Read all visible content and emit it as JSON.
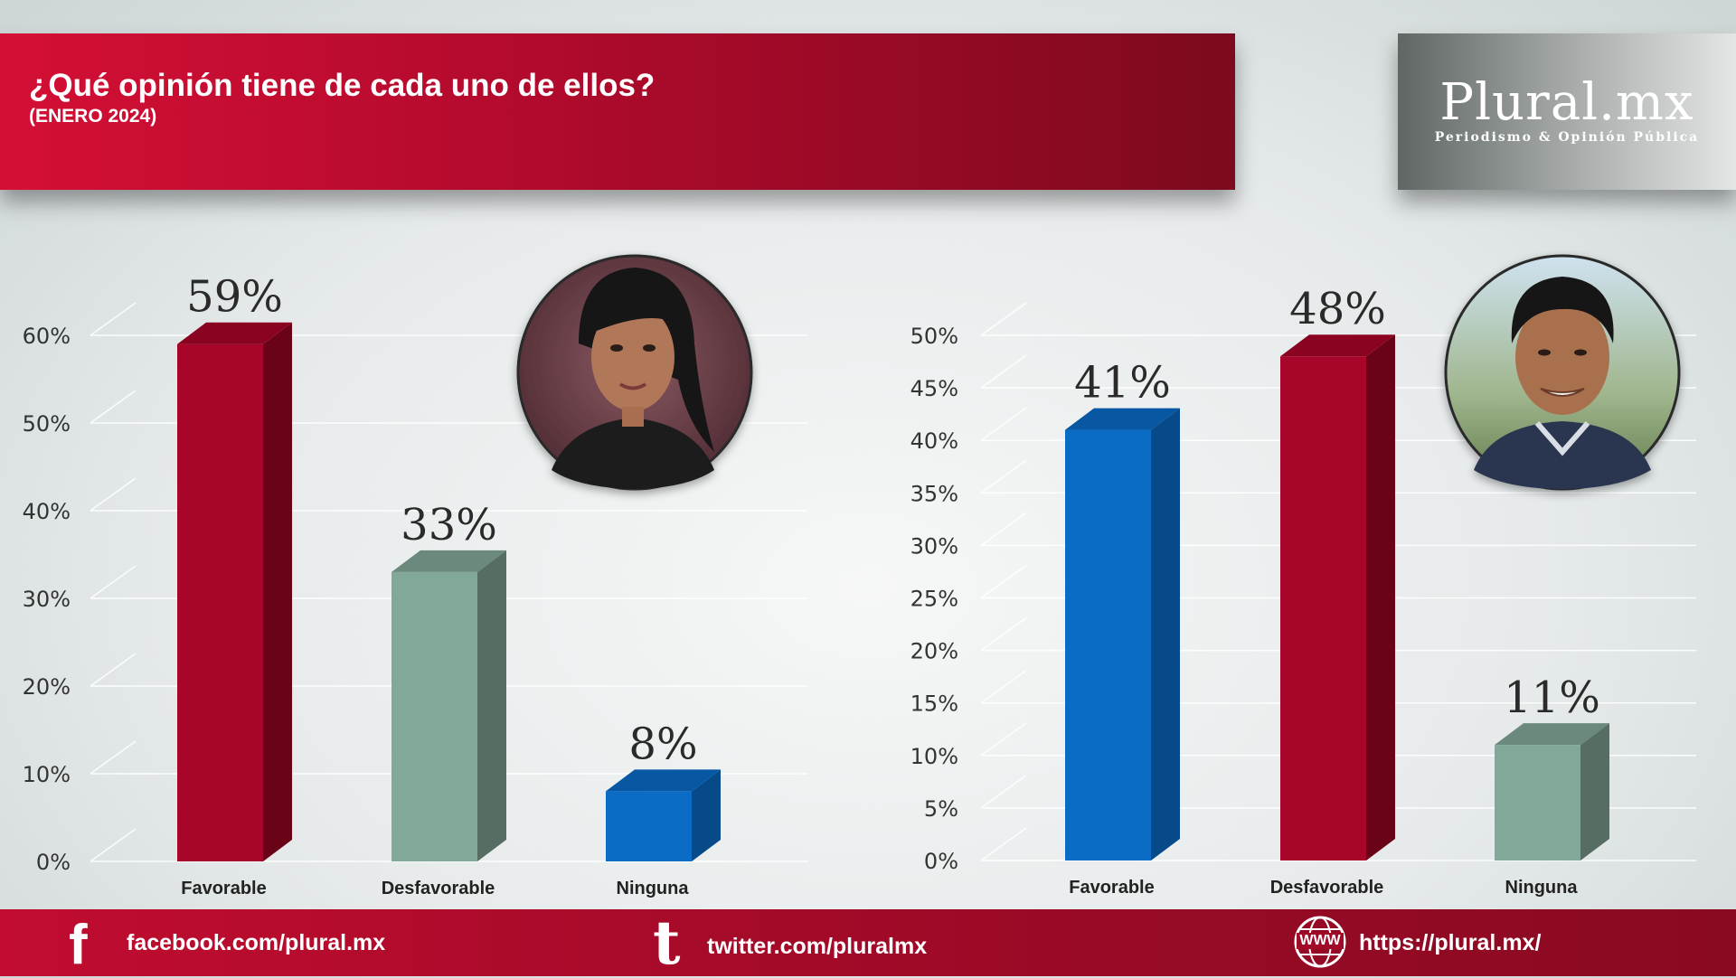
{
  "header": {
    "title": "¿Qué opinión tiene de cada uno de ellos?",
    "subtitle": "(ENERO 2024)"
  },
  "logo": {
    "name": "Plural.mx",
    "tagline": "Periodismo & Opinión Pública"
  },
  "chart_data": [
    {
      "type": "bar",
      "categories": [
        "Favorable",
        "Desfavorable",
        "Ninguna"
      ],
      "values": [
        59,
        33,
        8
      ],
      "value_labels": [
        "59%",
        "33%",
        "8%"
      ],
      "ylim": [
        0,
        60
      ],
      "yticks": [
        "0%",
        "10%",
        "20%",
        "30%",
        "40%",
        "50%",
        "60%"
      ],
      "colors": [
        "#a8052a",
        "#81a898",
        "#0a6cc4"
      ],
      "side_colors": [
        "#6a0218",
        "#566d63",
        "#064a8a"
      ],
      "top_colors": [
        "#8a0320",
        "#6b8a7d",
        "#0757a3"
      ],
      "grid": true,
      "portrait": "woman-portrait"
    },
    {
      "type": "bar",
      "categories": [
        "Favorable",
        "Desfavorable",
        "Ninguna"
      ],
      "values": [
        41,
        48,
        11
      ],
      "value_labels": [
        "41%",
        "48%",
        "11%"
      ],
      "ylim": [
        0,
        50
      ],
      "yticks": [
        "0%",
        "5%",
        "10%",
        "15%",
        "20%",
        "25%",
        "30%",
        "35%",
        "40%",
        "45%",
        "50%"
      ],
      "colors": [
        "#0a6cc4",
        "#a8052a",
        "#81a898"
      ],
      "side_colors": [
        "#064a8a",
        "#6a0218",
        "#566d63"
      ],
      "top_colors": [
        "#0757a3",
        "#8a0320",
        "#6b8a7d"
      ],
      "grid": true,
      "portrait": "man-portrait"
    }
  ],
  "footer": {
    "facebook": "facebook.com/plural.mx",
    "twitter": "twitter.com/pluralmx",
    "web": "https://plural.mx/",
    "facebook_icon": "f",
    "twitter_icon": "t",
    "web_icon": "WWW"
  }
}
